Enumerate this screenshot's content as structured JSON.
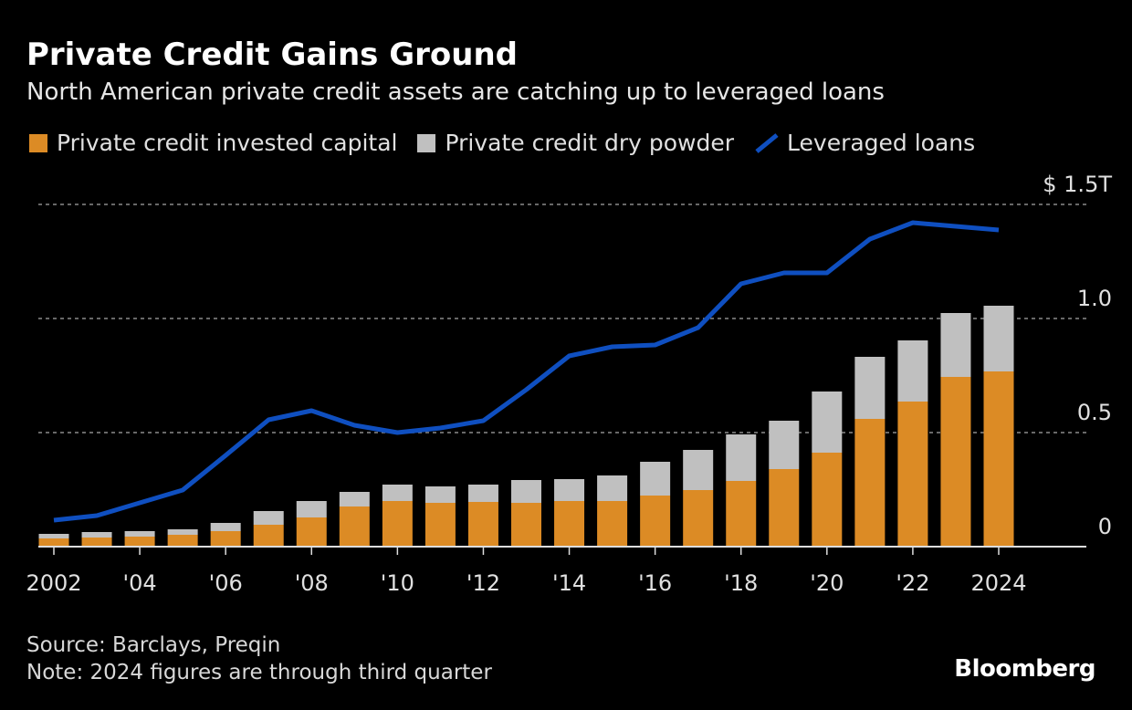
{
  "title": "Private Credit Gains Ground",
  "subtitle": "North American private credit assets are catching up to leveraged loans",
  "source": "Source: Barclays, Preqin",
  "note": "Note: 2024 figures are through third quarter",
  "logo": "Bloomberg",
  "chart_data": {
    "type": "bar",
    "stacked": true,
    "x": [
      2002,
      2003,
      2004,
      2005,
      2006,
      2007,
      2008,
      2009,
      2010,
      2011,
      2012,
      2013,
      2014,
      2015,
      2016,
      2017,
      2018,
      2019,
      2020,
      2021,
      2022,
      2023,
      2024
    ],
    "xtick_labels": {
      "2002": "2002",
      "2004": "'04",
      "2006": "'06",
      "2008": "'08",
      "2010": "'10",
      "2012": "'12",
      "2014": "'14",
      "2016": "'16",
      "2018": "'18",
      "2020": "'20",
      "2022": "'22",
      "2024": "2024"
    },
    "ytick_labels": [
      {
        "value": 0,
        "label": "0"
      },
      {
        "value": 0.5,
        "label": "0.5"
      },
      {
        "value": 1.0,
        "label": "1.0"
      },
      {
        "value": 1.5,
        "label": "$ 1.5T"
      }
    ],
    "ylim": [
      0,
      1.5
    ],
    "unit": "trillion USD",
    "grid": true,
    "legend_placement": "top",
    "series": [
      {
        "name": "Private credit invested capital",
        "type": "bar",
        "color": "#dc8b25",
        "values": [
          0.036,
          0.04,
          0.044,
          0.052,
          0.068,
          0.096,
          0.128,
          0.176,
          0.2,
          0.192,
          0.196,
          0.192,
          0.2,
          0.2,
          0.224,
          0.248,
          0.288,
          0.34,
          0.412,
          0.56,
          0.636,
          0.744,
          0.768
        ]
      },
      {
        "name": "Private credit dry powder",
        "type": "bar",
        "color": "#c0c0c0",
        "values": [
          0.02,
          0.024,
          0.024,
          0.024,
          0.036,
          0.06,
          0.072,
          0.064,
          0.072,
          0.072,
          0.076,
          0.1,
          0.096,
          0.112,
          0.148,
          0.176,
          0.204,
          0.212,
          0.268,
          0.272,
          0.268,
          0.28,
          0.288
        ]
      },
      {
        "name": "Leveraged loans",
        "type": "line",
        "color": "#0f4fc0",
        "values": [
          0.116,
          0.136,
          0.192,
          0.248,
          0.4,
          0.556,
          0.596,
          0.532,
          0.5,
          0.52,
          0.552,
          0.688,
          0.836,
          0.876,
          0.884,
          0.96,
          1.152,
          1.2,
          1.2,
          1.348,
          1.42,
          1.404,
          1.388
        ]
      }
    ]
  }
}
